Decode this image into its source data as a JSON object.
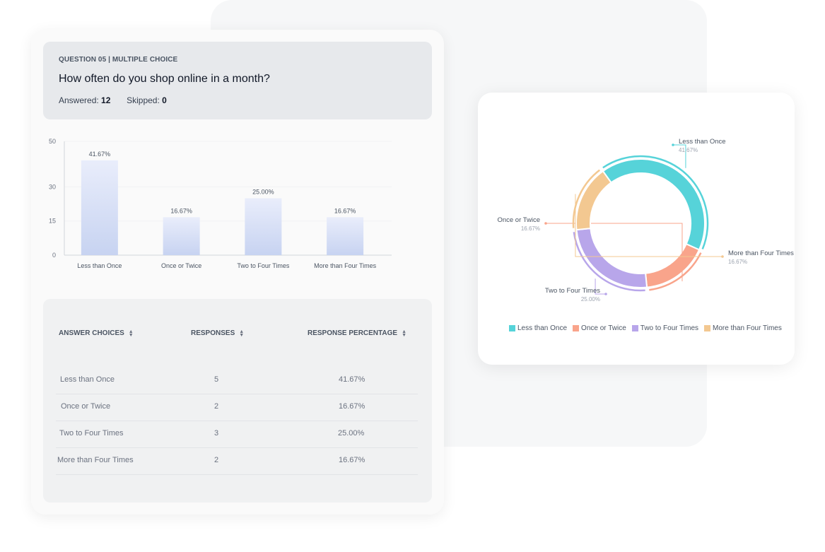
{
  "question": {
    "label": "QUESTION 05 | MULTIPLE CHOICE",
    "title": "How often do you shop online in a month?",
    "answered_label": "Answered:",
    "answered_value": "12",
    "skipped_label": "Skipped:",
    "skipped_value": "0"
  },
  "chart_data": [
    {
      "type": "bar",
      "categories": [
        "Less than Once",
        "Once or Twice",
        "Two to Four Times",
        "More than Four Times"
      ],
      "values": [
        41.67,
        16.67,
        25.0,
        16.67
      ],
      "data_labels": [
        "41.67%",
        "16.67%",
        "25.00%",
        "16.67%"
      ],
      "ylim": [
        0,
        50
      ],
      "yticks": [
        0,
        15,
        30,
        50
      ],
      "grid": true
    },
    {
      "type": "pie",
      "categories": [
        "Less than Once",
        "Once or Twice",
        "Two to Four Times",
        "More than Four Times"
      ],
      "values": [
        41.67,
        16.67,
        25.0,
        16.67
      ],
      "data_labels": [
        "41.67%",
        "16.67%",
        "25.00%",
        "16.67%"
      ],
      "colors": [
        "#56d3d9",
        "#f9a48b",
        "#b8a6ea",
        "#f3c891"
      ],
      "legend": "bottom"
    }
  ],
  "table": {
    "headers": [
      "ANSWER CHOICES",
      "RESPONSES",
      "RESPONSE PERCENTAGE"
    ],
    "rows": [
      {
        "choice": "Less than Once",
        "responses": "5",
        "percentage": "41.67%"
      },
      {
        "choice": "Once or Twice",
        "responses": "2",
        "percentage": "16.67%"
      },
      {
        "choice": "Two to Four Times",
        "responses": "3",
        "percentage": "25.00%"
      },
      {
        "choice": "More than Four Times",
        "responses": "2",
        "percentage": "16.67%"
      }
    ]
  }
}
